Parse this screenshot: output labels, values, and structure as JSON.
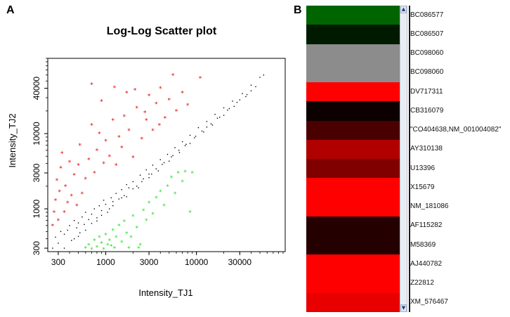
{
  "panel_a_letter": "A",
  "panel_b_letter": "B",
  "chart_data": {
    "type": "scatter",
    "title": "Log-Log Scatter plot",
    "xlabel": "Intensity_TJ1",
    "ylabel": "Intensity_TJ2",
    "x_scale": "log",
    "y_scale": "log",
    "xlim": [
      230,
      95000
    ],
    "ylim": [
      270,
      100000
    ],
    "x_ticks": [
      300,
      1000,
      3000,
      10000,
      30000
    ],
    "x_tick_labels": [
      "300",
      "1000",
      "3000",
      "10000",
      "30000"
    ],
    "y_ticks": [
      300,
      1000,
      3000,
      10000,
      40000
    ],
    "y_tick_labels": [
      "300",
      "1000",
      "3000",
      "10000",
      "40000"
    ],
    "grid": false,
    "legend": "none",
    "series": [
      {
        "marker": ".",
        "color": "#000000",
        "description": "unchanged genes",
        "points": [
          [
            260,
            300
          ],
          [
            280,
            420
          ],
          [
            300,
            350
          ],
          [
            320,
            500
          ],
          [
            350,
            460
          ],
          [
            380,
            520
          ],
          [
            400,
            600
          ],
          [
            420,
            380
          ],
          [
            450,
            700
          ],
          [
            480,
            560
          ],
          [
            500,
            650
          ],
          [
            520,
            480
          ],
          [
            550,
            780
          ],
          [
            580,
            620
          ],
          [
            600,
            900
          ],
          [
            650,
            720
          ],
          [
            700,
            850
          ],
          [
            750,
            1000
          ],
          [
            800,
            760
          ],
          [
            850,
            1100
          ],
          [
            900,
            950
          ],
          [
            950,
            1300
          ],
          [
            1000,
            1150
          ],
          [
            1100,
            1000
          ],
          [
            1150,
            1400
          ],
          [
            1200,
            1250
          ],
          [
            1300,
            1600
          ],
          [
            1400,
            1350
          ],
          [
            1500,
            1800
          ],
          [
            1600,
            1500
          ],
          [
            1700,
            2100
          ],
          [
            1800,
            1900
          ],
          [
            2000,
            2300
          ],
          [
            2200,
            2000
          ],
          [
            2400,
            2800
          ],
          [
            2600,
            2500
          ],
          [
            2800,
            3300
          ],
          [
            3000,
            2900
          ],
          [
            3300,
            3800
          ],
          [
            3600,
            3400
          ],
          [
            4000,
            4500
          ],
          [
            4400,
            4100
          ],
          [
            4800,
            5300
          ],
          [
            5300,
            4900
          ],
          [
            5800,
            6500
          ],
          [
            6400,
            6000
          ],
          [
            7000,
            7800
          ],
          [
            7700,
            7200
          ],
          [
            8500,
            9500
          ],
          [
            9500,
            8800
          ],
          [
            10500,
            12000
          ],
          [
            11500,
            10800
          ],
          [
            13000,
            14500
          ],
          [
            14500,
            13500
          ],
          [
            16000,
            18000
          ],
          [
            18000,
            16500
          ],
          [
            20000,
            22000
          ],
          [
            22000,
            20500
          ],
          [
            25000,
            27000
          ],
          [
            28000,
            26000
          ],
          [
            32000,
            34000
          ],
          [
            36000,
            33000
          ],
          [
            40000,
            44000
          ],
          [
            45000,
            42000
          ],
          [
            50000,
            56000
          ],
          [
            55000,
            60000
          ],
          [
            450,
            400
          ],
          [
            600,
            520
          ],
          [
            700,
            640
          ],
          [
            900,
            820
          ],
          [
            1200,
            1100
          ],
          [
            1500,
            1400
          ],
          [
            2000,
            1850
          ],
          [
            2500,
            2300
          ],
          [
            3200,
            2900
          ],
          [
            4200,
            3900
          ],
          [
            5500,
            5100
          ],
          [
            7500,
            6900
          ],
          [
            9800,
            9200
          ],
          [
            13000,
            12200
          ],
          [
            17000,
            16000
          ],
          [
            23000,
            21500
          ],
          [
            30000,
            28000
          ],
          [
            40000,
            37000
          ],
          [
            350,
            300
          ],
          [
            500,
            430
          ],
          [
            800,
            690
          ],
          [
            1050,
            900
          ],
          [
            1700,
            1450
          ],
          [
            2300,
            1900
          ],
          [
            3000,
            2600
          ],
          [
            3800,
            3200
          ],
          [
            5000,
            4300
          ],
          [
            6500,
            5600
          ],
          [
            8500,
            7400
          ],
          [
            12000,
            10500
          ],
          [
            15000,
            13000
          ],
          [
            20000,
            17500
          ],
          [
            26000,
            23000
          ],
          [
            35000,
            31000
          ]
        ]
      },
      {
        "marker": "*",
        "color": "#e00000",
        "description": "up-regulated in TJ2",
        "points": [
          [
            260,
            600
          ],
          [
            270,
            900
          ],
          [
            280,
            1300
          ],
          [
            290,
            2400
          ],
          [
            300,
            700
          ],
          [
            310,
            1700
          ],
          [
            320,
            3500
          ],
          [
            330,
            5500
          ],
          [
            350,
            900
          ],
          [
            360,
            2000
          ],
          [
            380,
            1200
          ],
          [
            400,
            4200
          ],
          [
            420,
            1500
          ],
          [
            450,
            2800
          ],
          [
            480,
            1100
          ],
          [
            500,
            3800
          ],
          [
            520,
            7000
          ],
          [
            550,
            1600
          ],
          [
            600,
            2500
          ],
          [
            650,
            4500
          ],
          [
            700,
            13000
          ],
          [
            750,
            3000
          ],
          [
            800,
            6000
          ],
          [
            850,
            10000
          ],
          [
            900,
            27000
          ],
          [
            950,
            4000
          ],
          [
            1000,
            8000
          ],
          [
            1100,
            5000
          ],
          [
            1200,
            15000
          ],
          [
            1300,
            3800
          ],
          [
            1400,
            9000
          ],
          [
            1500,
            6500
          ],
          [
            1600,
            17000
          ],
          [
            1800,
            11000
          ],
          [
            2000,
            4800
          ],
          [
            2100,
            38000
          ],
          [
            2200,
            22000
          ],
          [
            2500,
            8500
          ],
          [
            2800,
            15000
          ],
          [
            3000,
            32000
          ],
          [
            3300,
            11000
          ],
          [
            3600,
            25000
          ],
          [
            4000,
            40000
          ],
          [
            4500,
            16000
          ],
          [
            5000,
            28000
          ],
          [
            5500,
            60000
          ],
          [
            6000,
            20000
          ],
          [
            7000,
            35000
          ],
          [
            8000,
            24000
          ],
          [
            11000,
            55000
          ],
          [
            1700,
            35000
          ],
          [
            1250,
            41000
          ],
          [
            700,
            45000
          ],
          [
            2700,
            19000
          ],
          [
            3900,
            13000
          ]
        ]
      },
      {
        "marker": "*",
        "color": "#22dd22",
        "description": "down-regulated in TJ2",
        "points": [
          [
            600,
            300
          ],
          [
            650,
            330
          ],
          [
            700,
            290
          ],
          [
            750,
            380
          ],
          [
            800,
            310
          ],
          [
            850,
            420
          ],
          [
            900,
            350
          ],
          [
            950,
            290
          ],
          [
            1000,
            450
          ],
          [
            1100,
            380
          ],
          [
            1150,
            320
          ],
          [
            1200,
            520
          ],
          [
            1300,
            420
          ],
          [
            1400,
            600
          ],
          [
            1500,
            360
          ],
          [
            1600,
            680
          ],
          [
            1700,
            470
          ],
          [
            1800,
            300
          ],
          [
            2000,
            800
          ],
          [
            2200,
            560
          ],
          [
            2400,
            330
          ],
          [
            2600,
            950
          ],
          [
            2800,
            700
          ],
          [
            3000,
            1200
          ],
          [
            3300,
            850
          ],
          [
            3600,
            1400
          ],
          [
            4000,
            1700
          ],
          [
            4400,
            1100
          ],
          [
            4800,
            2000
          ],
          [
            5300,
            2600
          ],
          [
            5800,
            1600
          ],
          [
            6300,
            3000
          ],
          [
            7000,
            2300
          ],
          [
            7500,
            3100
          ],
          [
            8500,
            900
          ],
          [
            9000,
            3000
          ],
          [
            1900,
            420
          ],
          [
            2300,
            300
          ],
          [
            1250,
            300
          ],
          [
            1050,
            330
          ]
        ]
      }
    ]
  },
  "heatmap": {
    "rows": [
      {
        "gene": "BC086577",
        "color": "#006400"
      },
      {
        "gene": "BC086507",
        "color": "#001a00"
      },
      {
        "gene": "BC098060",
        "color": "#8c8c8c"
      },
      {
        "gene": "BC098060",
        "color": "#8c8c8c"
      },
      {
        "gene": "DV717311",
        "color": "#ff0000"
      },
      {
        "gene": "CB316079",
        "color": "#0d0000"
      },
      {
        "gene": "\"CO404638,NM_001004082\"",
        "color": "#4a0000"
      },
      {
        "gene": "AY310138",
        "color": "#b00000"
      },
      {
        "gene": "U13396",
        "color": "#800000"
      },
      {
        "gene": "X15679",
        "color": "#ff0000"
      },
      {
        "gene": "NM_181086",
        "color": "#ff0000"
      },
      {
        "gene": "AF115282",
        "color": "#240000"
      },
      {
        "gene": "M58369",
        "color": "#240000"
      },
      {
        "gene": "AJ440782",
        "color": "#ff0000"
      },
      {
        "gene": "Z22812",
        "color": "#ff0000"
      },
      {
        "gene": "XM_576467",
        "color": "#e80000"
      }
    ]
  },
  "scroll_up_icon": "scroll-up-arrow-icon",
  "scroll_down_icon": "scroll-down-arrow-icon"
}
